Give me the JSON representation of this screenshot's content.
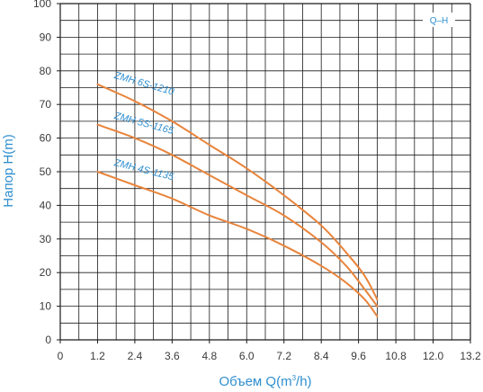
{
  "chart_data": {
    "type": "line",
    "title": "",
    "badge": "Q–H",
    "xlabel": "Объем Q(m³/h)",
    "xlabel_main": "Объем Q(m",
    "xlabel_sup": "3",
    "xlabel_tail": "/h)",
    "ylabel": "Напор H(m)",
    "xlim": [
      0,
      13.2
    ],
    "ylim": [
      0,
      100
    ],
    "x_ticks": [
      "0",
      "1.2",
      "2.4",
      "3.6",
      "4.8",
      "6.0",
      "7.2",
      "8.4",
      "9.6",
      "10.8",
      "12.0",
      "13.2"
    ],
    "y_ticks": [
      "0",
      "10",
      "20",
      "30",
      "40",
      "50",
      "60",
      "70",
      "80",
      "90",
      "100"
    ],
    "grid": true,
    "colors": {
      "curve": "#e8843b",
      "text_accent": "#2f8fd0",
      "grid": "#1a1a1a"
    },
    "series": [
      {
        "name": "ZMH 6S-1210",
        "x": [
          1.2,
          2.4,
          3.6,
          4.8,
          6.0,
          7.2,
          8.4,
          9.2,
          9.8,
          10.2
        ],
        "y": [
          76,
          71,
          65,
          58,
          51,
          43,
          34,
          26,
          19,
          12
        ]
      },
      {
        "name": "ZMH 5S-1165",
        "x": [
          1.2,
          2.4,
          3.6,
          4.8,
          6.0,
          7.2,
          8.4,
          9.2,
          9.8,
          10.2
        ],
        "y": [
          64,
          60,
          55,
          49,
          43,
          37,
          29,
          22,
          15,
          10
        ]
      },
      {
        "name": "ZMH 4S-1135",
        "x": [
          1.2,
          2.4,
          3.6,
          4.8,
          6.0,
          7.2,
          8.4,
          9.2,
          9.8,
          10.2
        ],
        "y": [
          50,
          46,
          42,
          37,
          33,
          28,
          22,
          17,
          12,
          7
        ]
      }
    ]
  }
}
